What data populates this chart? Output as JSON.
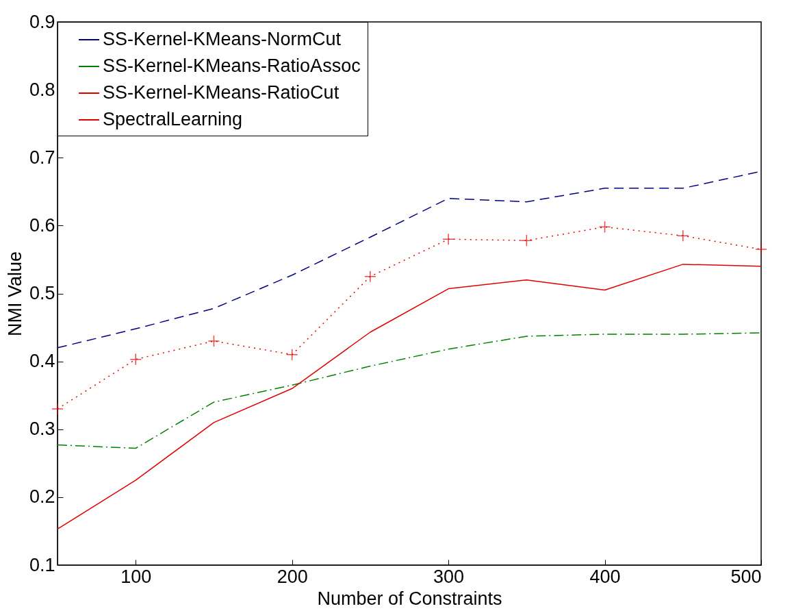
{
  "chart_data": {
    "type": "line",
    "xlabel": "Number of Constraints",
    "ylabel": "NMI Value",
    "x": [
      50,
      100,
      150,
      200,
      250,
      300,
      350,
      400,
      450,
      500
    ],
    "xlim": [
      50,
      500
    ],
    "xticks": [
      100,
      200,
      300,
      400,
      500
    ],
    "ylim": [
      0.1,
      0.9
    ],
    "yticks": [
      0.1,
      0.2,
      0.3,
      0.4,
      0.5,
      0.6,
      0.7,
      0.8,
      0.9
    ],
    "legend": "top left",
    "grid": false,
    "series": [
      {
        "name": "SS-Kernel-KMeans-NormCut",
        "color": "#000080",
        "line_style": "dashed",
        "marker": "none",
        "values": [
          0.42,
          0.448,
          0.478,
          0.527,
          0.583,
          0.64,
          0.635,
          0.655,
          0.655,
          0.68
        ]
      },
      {
        "name": "SS-Kernel-KMeans-RatioAssoc",
        "color": "#008000",
        "line_style": "dashdot",
        "marker": "none",
        "values": [
          0.277,
          0.272,
          0.34,
          0.365,
          0.393,
          0.418,
          0.437,
          0.44,
          0.44,
          0.442
        ]
      },
      {
        "name": "SS-Kernel-KMeans-RatioCut",
        "color": "#e00000",
        "line_style": "solid",
        "marker": "none",
        "values": [
          0.153,
          0.225,
          0.31,
          0.36,
          0.443,
          0.507,
          0.52,
          0.505,
          0.543,
          0.54
        ]
      },
      {
        "name": "SpectralLearning",
        "color": "#e00000",
        "line_style": "dotted",
        "marker": "cross",
        "values": [
          0.33,
          0.403,
          0.43,
          0.41,
          0.525,
          0.58,
          0.578,
          0.598,
          0.585,
          0.565
        ]
      }
    ]
  }
}
